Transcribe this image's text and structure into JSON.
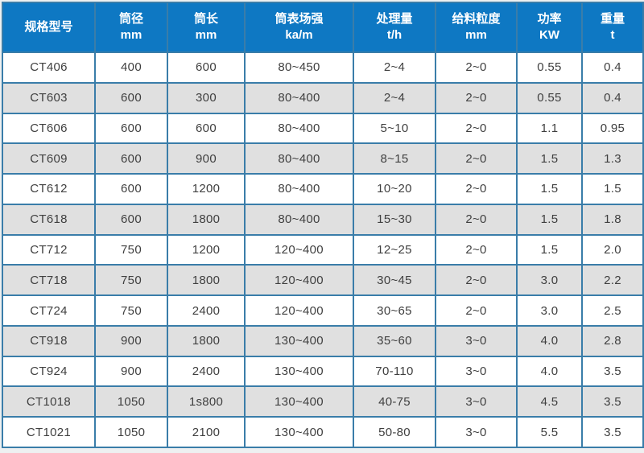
{
  "colors": {
    "page_bg": "#eef0f1",
    "header_bg": "#0e78c3",
    "header_text": "#ffffff",
    "border": "#3a7da9",
    "row_bg": "#ffffff",
    "row_alt_bg": "#e0e0e0",
    "cell_text": "#3f3f3f"
  },
  "chart_data": {
    "type": "table",
    "legend_position": "none",
    "grid": true,
    "columns": [
      {
        "key": "model",
        "label": "规格型号",
        "unit": ""
      },
      {
        "key": "diameter",
        "label": "筒径",
        "unit": "mm"
      },
      {
        "key": "length",
        "label": "筒长",
        "unit": "mm"
      },
      {
        "key": "field-strength",
        "label": "筒表场强",
        "unit": "ka/m"
      },
      {
        "key": "capacity",
        "label": "处理量",
        "unit": "t/h"
      },
      {
        "key": "feed-size",
        "label": "给料粒度",
        "unit": "mm"
      },
      {
        "key": "power",
        "label": "功率",
        "unit": "KW"
      },
      {
        "key": "weight",
        "label": "重量",
        "unit": "t"
      }
    ],
    "rows": [
      [
        "CT406",
        "400",
        "600",
        "80~450",
        "2~4",
        "2~0",
        "0.55",
        "0.4"
      ],
      [
        "CT603",
        "600",
        "300",
        "80~400",
        "2~4",
        "2~0",
        "0.55",
        "0.4"
      ],
      [
        "CT606",
        "600",
        "600",
        "80~400",
        "5~10",
        "2~0",
        "1.1",
        "0.95"
      ],
      [
        "CT609",
        "600",
        "900",
        "80~400",
        "8~15",
        "2~0",
        "1.5",
        "1.3"
      ],
      [
        "CT612",
        "600",
        "1200",
        "80~400",
        "10~20",
        "2~0",
        "1.5",
        "1.5"
      ],
      [
        "CT618",
        "600",
        "1800",
        "80~400",
        "15~30",
        "2~0",
        "1.5",
        "1.8"
      ],
      [
        "CT712",
        "750",
        "1200",
        "120~400",
        "12~25",
        "2~0",
        "1.5",
        "2.0"
      ],
      [
        "CT718",
        "750",
        "1800",
        "120~400",
        "30~45",
        "2~0",
        "3.0",
        "2.2"
      ],
      [
        "CT724",
        "750",
        "2400",
        "120~400",
        "30~65",
        "2~0",
        "3.0",
        "2.5"
      ],
      [
        "CT918",
        "900",
        "1800",
        "130~400",
        "35~60",
        "3~0",
        "4.0",
        "2.8"
      ],
      [
        "CT924",
        "900",
        "2400",
        "130~400",
        "70-110",
        "3~0",
        "4.0",
        "3.5"
      ],
      [
        "CT1018",
        "1050",
        "1s800",
        "130~400",
        "40-75",
        "3~0",
        "4.5",
        "3.5"
      ],
      [
        "CT1021",
        "1050",
        "2100",
        "130~400",
        "50-80",
        "3~0",
        "5.5",
        "3.5"
      ]
    ]
  }
}
